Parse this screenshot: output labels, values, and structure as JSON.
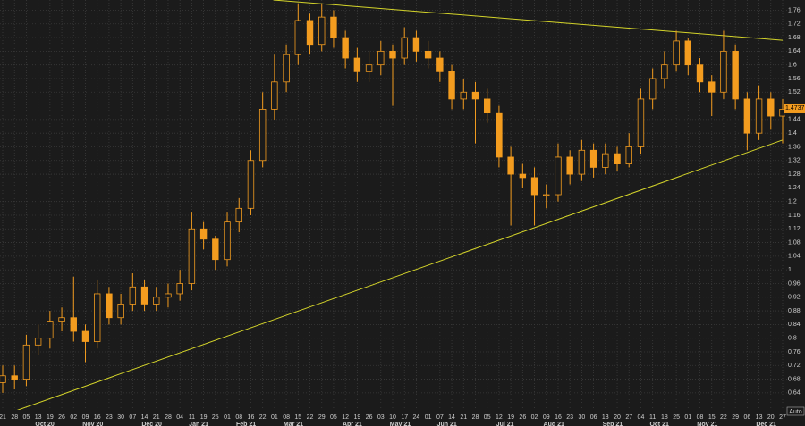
{
  "chart_data": {
    "type": "candlestick",
    "color": "#f39c1f",
    "categories": [
      "21",
      "28",
      "05",
      "13",
      "19",
      "26",
      "02",
      "09",
      "16",
      "23",
      "30",
      "07",
      "14",
      "21",
      "28",
      "04",
      "11",
      "19",
      "25",
      "01",
      "08",
      "16",
      "22",
      "01",
      "08",
      "15",
      "22",
      "29",
      "05",
      "12",
      "19",
      "26",
      "03",
      "10",
      "17",
      "24",
      "01",
      "07",
      "14",
      "21",
      "28",
      "05",
      "12",
      "19",
      "26",
      "02",
      "09",
      "16",
      "23",
      "30",
      "06",
      "13",
      "20",
      "27",
      "04",
      "11",
      "18",
      "25",
      "01",
      "08",
      "15",
      "22",
      "29",
      "06",
      "13",
      "20",
      "27"
    ],
    "months": [
      "Oct 20",
      "Nov 20",
      "Dec 20",
      "Jan 21",
      "Feb 21",
      "Mar 21",
      "Apr 21",
      "May 21",
      "Jun 21",
      "Jul 21",
      "Aug 21",
      "Sep 21",
      "Oct 21",
      "Nov 21",
      "Dec 21"
    ],
    "open": [
      0.67,
      0.69,
      0.68,
      0.78,
      0.8,
      0.85,
      0.86,
      0.82,
      0.79,
      0.93,
      0.86,
      0.9,
      0.95,
      0.9,
      0.92,
      0.93,
      0.96,
      1.12,
      1.09,
      1.03,
      1.14,
      1.18,
      1.32,
      1.47,
      1.55,
      1.63,
      1.73,
      1.66,
      1.74,
      1.68,
      1.62,
      1.58,
      1.6,
      1.64,
      1.62,
      1.68,
      1.64,
      1.62,
      1.58,
      1.5,
      1.52,
      1.5,
      1.46,
      1.33,
      1.28,
      1.27,
      1.22,
      1.22,
      1.33,
      1.28,
      1.35,
      1.3,
      1.34,
      1.31,
      1.36,
      1.5,
      1.56,
      1.6,
      1.67,
      1.6,
      1.55,
      1.52,
      1.64,
      1.5,
      1.4,
      1.5,
      1.45
    ],
    "high": [
      0.72,
      0.72,
      0.81,
      0.84,
      0.88,
      0.89,
      0.98,
      0.84,
      0.97,
      0.95,
      0.93,
      0.99,
      0.97,
      0.95,
      0.96,
      1.0,
      1.17,
      1.14,
      1.1,
      1.17,
      1.21,
      1.35,
      1.52,
      1.63,
      1.66,
      1.78,
      1.75,
      1.78,
      1.76,
      1.7,
      1.65,
      1.64,
      1.67,
      1.66,
      1.71,
      1.7,
      1.67,
      1.64,
      1.6,
      1.56,
      1.55,
      1.53,
      1.48,
      1.36,
      1.31,
      1.3,
      1.25,
      1.37,
      1.35,
      1.38,
      1.37,
      1.37,
      1.36,
      1.4,
      1.53,
      1.59,
      1.64,
      1.7,
      1.68,
      1.62,
      1.57,
      1.7,
      1.66,
      1.52,
      1.54,
      1.52,
      1.5
    ],
    "low": [
      0.64,
      0.65,
      0.66,
      0.75,
      0.77,
      0.82,
      0.79,
      0.73,
      0.77,
      0.84,
      0.84,
      0.88,
      0.88,
      0.88,
      0.89,
      0.91,
      0.94,
      1.06,
      1.0,
      1.01,
      1.11,
      1.16,
      1.3,
      1.44,
      1.52,
      1.6,
      1.63,
      1.64,
      1.65,
      1.59,
      1.55,
      1.55,
      1.57,
      1.48,
      1.6,
      1.61,
      1.59,
      1.55,
      1.47,
      1.47,
      1.37,
      1.43,
      1.3,
      1.13,
      1.24,
      1.13,
      1.18,
      1.2,
      1.25,
      1.26,
      1.27,
      1.28,
      1.29,
      1.3,
      1.34,
      1.47,
      1.53,
      1.58,
      1.57,
      1.52,
      1.45,
      1.5,
      1.47,
      1.35,
      1.38,
      1.41,
      1.37
    ],
    "close": [
      0.69,
      0.68,
      0.78,
      0.8,
      0.85,
      0.86,
      0.82,
      0.79,
      0.93,
      0.86,
      0.9,
      0.95,
      0.9,
      0.92,
      0.93,
      0.96,
      1.12,
      1.09,
      1.03,
      1.14,
      1.18,
      1.32,
      1.47,
      1.55,
      1.63,
      1.73,
      1.66,
      1.74,
      1.68,
      1.62,
      1.58,
      1.6,
      1.64,
      1.62,
      1.68,
      1.64,
      1.62,
      1.58,
      1.5,
      1.52,
      1.5,
      1.46,
      1.33,
      1.28,
      1.27,
      1.22,
      1.22,
      1.33,
      1.28,
      1.35,
      1.3,
      1.34,
      1.31,
      1.36,
      1.5,
      1.56,
      1.6,
      1.67,
      1.6,
      1.55,
      1.52,
      1.64,
      1.5,
      1.4,
      1.5,
      1.45,
      1.47
    ],
    "last_price": 1.4737,
    "ylim": [
      0.59,
      1.79
    ],
    "yticks": [
      0.64,
      0.68,
      0.72,
      0.76,
      0.8,
      0.84,
      0.88,
      0.92,
      0.96,
      1,
      1.04,
      1.08,
      1.12,
      1.16,
      1.2,
      1.24,
      1.28,
      1.32,
      1.36,
      1.4,
      1.44,
      1.52,
      1.56,
      1.6,
      1.64,
      1.68,
      1.72,
      1.76
    ],
    "trendlines": [
      {
        "color": "#d4d42a",
        "x": [
          22.9,
          66
        ],
        "y": [
          1.79,
          1.672
        ]
      },
      {
        "color": "#d4d42a",
        "x": [
          0.9,
          66
        ],
        "y": [
          0.585,
          1.38
        ]
      }
    ],
    "axis_mode": "Auto",
    "grid": true
  }
}
